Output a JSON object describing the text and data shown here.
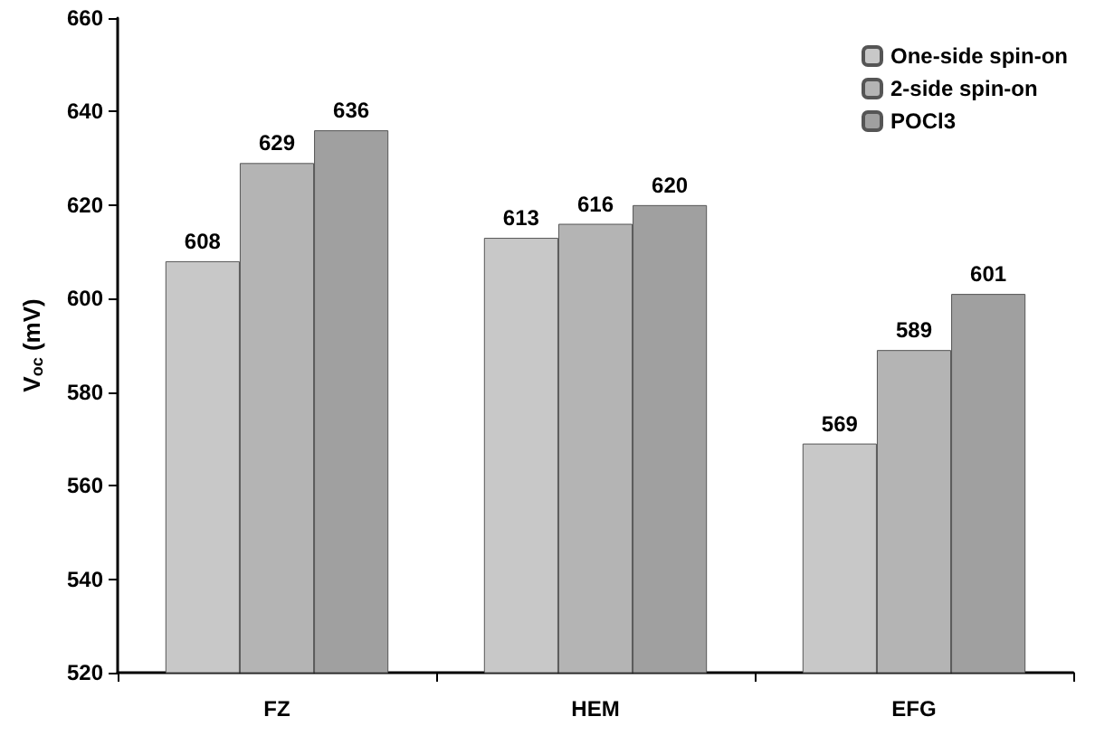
{
  "chart_data": {
    "type": "bar",
    "ylabel": "V$_{oc}$ (mV)",
    "categories": [
      "FZ",
      "HEM",
      "EFG"
    ],
    "series": [
      {
        "name": "One-side spin-on",
        "color": "#c8c8c8",
        "values": [
          608,
          613,
          569
        ]
      },
      {
        "name": "2-side spin-on",
        "color": "#b4b4b4",
        "values": [
          629,
          616,
          589
        ]
      },
      {
        "name": "POCl3",
        "color": "#a0a0a0",
        "values": [
          636,
          620,
          601
        ]
      }
    ],
    "ylim": [
      520,
      660
    ],
    "yticks": [
      520,
      540,
      560,
      580,
      600,
      620,
      640,
      660
    ],
    "data_labels": true,
    "legend": "top right",
    "grid": false
  }
}
